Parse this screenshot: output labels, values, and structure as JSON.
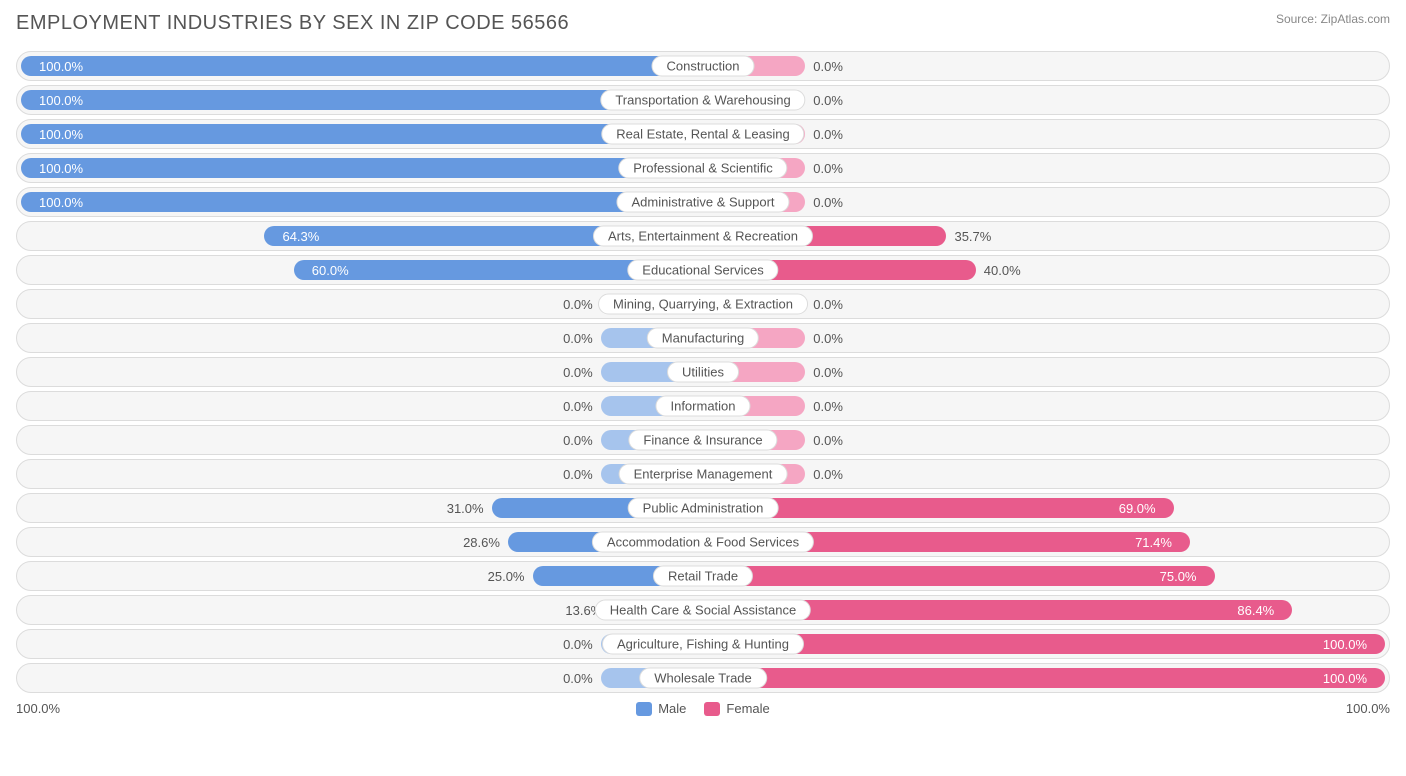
{
  "title": "EMPLOYMENT INDUSTRIES BY SEX IN ZIP CODE 56566",
  "source": "Source: ZipAtlas.com",
  "colors": {
    "male": "#6699e0",
    "male_light": "#a6c4ed",
    "female": "#e85b8c",
    "female_light": "#f5a6c3",
    "row_bg": "#f6f6f6",
    "row_border": "#dcdcdc",
    "text": "#555555",
    "text_light": "#888888"
  },
  "chart": {
    "type": "diverging-bar",
    "default_bar_pct": 15,
    "axis_left": "100.0%",
    "axis_right": "100.0%",
    "legend": [
      {
        "label": "Male",
        "color": "#6699e0"
      },
      {
        "label": "Female",
        "color": "#e85b8c"
      }
    ],
    "rows": [
      {
        "label": "Construction",
        "male": 100.0,
        "female": 0.0,
        "male_label": "100.0%",
        "female_label": "0.0%"
      },
      {
        "label": "Transportation & Warehousing",
        "male": 100.0,
        "female": 0.0,
        "male_label": "100.0%",
        "female_label": "0.0%"
      },
      {
        "label": "Real Estate, Rental & Leasing",
        "male": 100.0,
        "female": 0.0,
        "male_label": "100.0%",
        "female_label": "0.0%"
      },
      {
        "label": "Professional & Scientific",
        "male": 100.0,
        "female": 0.0,
        "male_label": "100.0%",
        "female_label": "0.0%"
      },
      {
        "label": "Administrative & Support",
        "male": 100.0,
        "female": 0.0,
        "male_label": "100.0%",
        "female_label": "0.0%"
      },
      {
        "label": "Arts, Entertainment & Recreation",
        "male": 64.3,
        "female": 35.7,
        "male_label": "64.3%",
        "female_label": "35.7%"
      },
      {
        "label": "Educational Services",
        "male": 60.0,
        "female": 40.0,
        "male_label": "60.0%",
        "female_label": "40.0%"
      },
      {
        "label": "Mining, Quarrying, & Extraction",
        "male": 0.0,
        "female": 0.0,
        "male_label": "0.0%",
        "female_label": "0.0%"
      },
      {
        "label": "Manufacturing",
        "male": 0.0,
        "female": 0.0,
        "male_label": "0.0%",
        "female_label": "0.0%"
      },
      {
        "label": "Utilities",
        "male": 0.0,
        "female": 0.0,
        "male_label": "0.0%",
        "female_label": "0.0%"
      },
      {
        "label": "Information",
        "male": 0.0,
        "female": 0.0,
        "male_label": "0.0%",
        "female_label": "0.0%"
      },
      {
        "label": "Finance & Insurance",
        "male": 0.0,
        "female": 0.0,
        "male_label": "0.0%",
        "female_label": "0.0%"
      },
      {
        "label": "Enterprise Management",
        "male": 0.0,
        "female": 0.0,
        "male_label": "0.0%",
        "female_label": "0.0%"
      },
      {
        "label": "Public Administration",
        "male": 31.0,
        "female": 69.0,
        "male_label": "31.0%",
        "female_label": "69.0%"
      },
      {
        "label": "Accommodation & Food Services",
        "male": 28.6,
        "female": 71.4,
        "male_label": "28.6%",
        "female_label": "71.4%"
      },
      {
        "label": "Retail Trade",
        "male": 25.0,
        "female": 75.0,
        "male_label": "25.0%",
        "female_label": "75.0%"
      },
      {
        "label": "Health Care & Social Assistance",
        "male": 13.6,
        "female": 86.4,
        "male_label": "13.6%",
        "female_label": "86.4%"
      },
      {
        "label": "Agriculture, Fishing & Hunting",
        "male": 0.0,
        "female": 100.0,
        "male_label": "0.0%",
        "female_label": "100.0%"
      },
      {
        "label": "Wholesale Trade",
        "male": 0.0,
        "female": 100.0,
        "male_label": "0.0%",
        "female_label": "100.0%"
      }
    ]
  }
}
